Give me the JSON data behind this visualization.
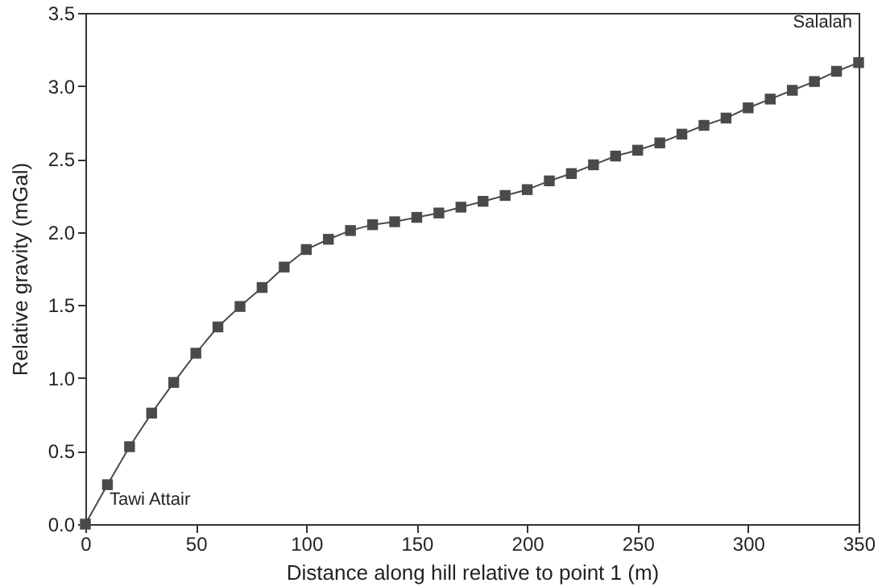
{
  "chart_data": {
    "type": "line",
    "xlabel": "Distance along hill relative to point 1 (m)",
    "ylabel": "Relative gravity (mGal)",
    "x": [
      0,
      10,
      20,
      30,
      40,
      50,
      60,
      70,
      80,
      90,
      100,
      110,
      120,
      130,
      140,
      150,
      160,
      170,
      180,
      190,
      200,
      210,
      220,
      230,
      240,
      250,
      260,
      270,
      280,
      290,
      300,
      310,
      320,
      330,
      340,
      350
    ],
    "series": [
      {
        "color": "#4a4a4a",
        "values": [
          0,
          0.27,
          0.53,
          0.76,
          0.97,
          1.17,
          1.35,
          1.49,
          1.62,
          1.76,
          1.88,
          1.95,
          2.01,
          2.05,
          2.07,
          2.1,
          2.13,
          2.17,
          2.21,
          2.25,
          2.29,
          2.35,
          2.4,
          2.46,
          2.52,
          2.56,
          2.61,
          2.67,
          2.73,
          2.78,
          2.85,
          2.91,
          2.97,
          3.03,
          3.1,
          3.16
        ]
      }
    ],
    "xlim": [
      0,
      350
    ],
    "xticks": [
      0,
      50,
      100,
      150,
      200,
      250,
      300,
      350
    ],
    "ylim": [
      0,
      3.5
    ],
    "yticks": [
      {
        "value": 0,
        "label": "0.0"
      },
      {
        "value": 0.5,
        "label": "0.5"
      },
      {
        "value": 1,
        "label": "1.0"
      },
      {
        "value": 1.5,
        "label": "1.5"
      },
      {
        "value": 2,
        "label": "2.0"
      },
      {
        "value": 2.5,
        "label": "2.5"
      },
      {
        "value": 3,
        "label": "3.0"
      },
      {
        "value": 3.5,
        "label": "3.5"
      }
    ],
    "annotations": [
      {
        "text": "Tawi Attair",
        "x": 0,
        "y": 0
      },
      {
        "text": "Salalah",
        "x": 350,
        "y": 3.16
      }
    ],
    "marker": "square",
    "grid": false
  }
}
